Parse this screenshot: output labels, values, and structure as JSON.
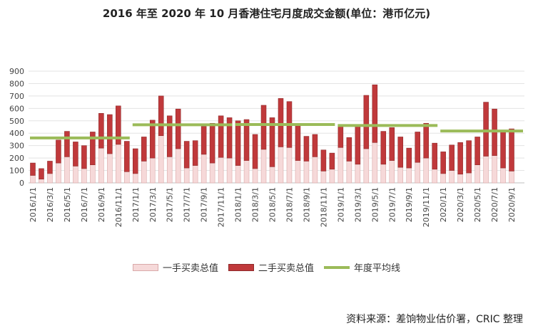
{
  "chart_data": {
    "type": "bar",
    "title": "2016 年至 2020 年 10 月香港住宅月度成交金额(单位：港币亿元)",
    "ylim": [
      0,
      900
    ],
    "yticks": [
      0,
      100,
      200,
      300,
      400,
      500,
      600,
      700,
      800,
      900
    ],
    "grid": true,
    "legend_position": "bottom",
    "categories": [
      "2016/1/1",
      "2016/2/1",
      "2016/3/1",
      "2016/4/1",
      "2016/5/1",
      "2016/6/1",
      "2016/7/1",
      "2016/8/1",
      "2016/9/1",
      "2016/10/1",
      "2016/11/1",
      "2016/12/1",
      "2017/1/1",
      "2017/2/1",
      "2017/3/1",
      "2017/4/1",
      "2017/5/1",
      "2017/6/1",
      "2017/7/1",
      "2017/8/1",
      "2017/9/1",
      "2017/10/1",
      "2017/11/1",
      "2017/12/1",
      "2018/1/1",
      "2018/2/1",
      "2018/3/1",
      "2018/4/1",
      "2018/5/1",
      "2018/6/1",
      "2018/7/1",
      "2018/8/1",
      "2018/9/1",
      "2018/10/1",
      "2018/11/1",
      "2018/12/1",
      "2019/1/1",
      "2019/2/1",
      "2019/3/1",
      "2019/4/1",
      "2019/5/1",
      "2019/6/1",
      "2019/7/1",
      "2019/8/1",
      "2019/9/1",
      "2019/10/1",
      "2019/11/1",
      "2019/12/1",
      "2020/1/1",
      "2020/2/1",
      "2020/3/1",
      "2020/4/1",
      "2020/5/1",
      "2020/6/1",
      "2020/7/1",
      "2020/8/1",
      "2020/9/1",
      "2020/10/1"
    ],
    "tick_labels": [
      "2016/1/1",
      "2016/3/1",
      "2016/5/1",
      "2016/7/1",
      "2016/9/1",
      "2016/11/1",
      "2017/1/1",
      "2017/3/1",
      "2017/5/1",
      "2017/7/1",
      "2017/9/1",
      "2017/11/1",
      "2018/1/1",
      "2018/3/1",
      "2018/5/1",
      "2018/7/1",
      "2018/9/1",
      "2018/11/1",
      "2019/1/1",
      "2019/3/1",
      "2019/5/1",
      "2019/7/1",
      "2019/9/1",
      "2019/11/1",
      "2020/1/1",
      "2020/3/1",
      "2020/5/1",
      "2020/7/1",
      "2020/9/1"
    ],
    "series": [
      {
        "name": "一手买卖总值",
        "stack": "total",
        "color": "#f6d9d9",
        "values": [
          60,
          30,
          75,
          160,
          210,
          135,
          115,
          145,
          280,
          235,
          310,
          90,
          75,
          175,
          200,
          380,
          210,
          275,
          120,
          140,
          230,
          160,
          205,
          200,
          140,
          180,
          115,
          270,
          130,
          290,
          285,
          180,
          175,
          210,
          95,
          110,
          285,
          175,
          150,
          275,
          325,
          150,
          180,
          125,
          120,
          165,
          200,
          110,
          75,
          100,
          70,
          80,
          145,
          215,
          220,
          120,
          95,
          0
        ]
      },
      {
        "name": "二手买卖总值",
        "stack": "total",
        "color": "#c0393b",
        "values": [
          100,
          85,
          100,
          185,
          205,
          195,
          185,
          265,
          280,
          315,
          310,
          245,
          200,
          195,
          305,
          320,
          330,
          320,
          215,
          200,
          225,
          320,
          335,
          325,
          360,
          330,
          275,
          355,
          395,
          390,
          370,
          285,
          200,
          180,
          170,
          130,
          175,
          190,
          310,
          430,
          465,
          265,
          265,
          245,
          160,
          245,
          280,
          210,
          175,
          205,
          255,
          260,
          225,
          435,
          375,
          305,
          340,
          0
        ]
      },
      {
        "name": "年度平均线",
        "type": "line",
        "color": "#9bbb59",
        "segments": [
          {
            "from": "2016/1/1",
            "to": "2016/12/1",
            "value": 362
          },
          {
            "from": "2017/1/1",
            "to": "2017/12/1",
            "value": 468
          },
          {
            "from": "2018/1/1",
            "to": "2018/12/1",
            "value": 470
          },
          {
            "from": "2019/1/1",
            "to": "2019/12/1",
            "value": 462
          },
          {
            "from": "2020/1/1",
            "to": "2020/10/1",
            "value": 418
          }
        ]
      }
    ]
  },
  "source": "资料来源：差饷物业估价署，CRIC 整理"
}
